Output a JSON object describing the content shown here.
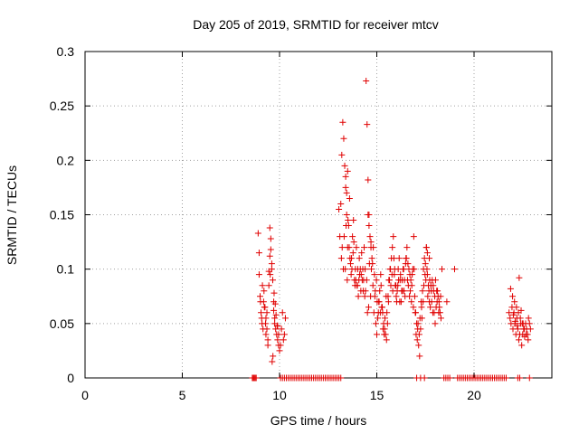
{
  "chart_data": {
    "type": "scatter",
    "title": "Day 205 of 2019, SRMTID for receiver mtcv",
    "xlabel": "GPS time / hours",
    "ylabel": "SRMTID / TECUs",
    "xlim": [
      0,
      24
    ],
    "ylim": [
      0,
      0.3
    ],
    "grid": true,
    "x_ticks": [
      0,
      5,
      10,
      15,
      20
    ],
    "x_tick_labels": [
      "0",
      "5",
      "10",
      "15",
      "20"
    ],
    "y_ticks": [
      0,
      0.05,
      0.1,
      0.15,
      0.2,
      0.25,
      0.3
    ],
    "y_tick_labels": [
      "0",
      "0.05",
      "0.1",
      "0.15",
      "0.2",
      "0.25",
      "0.3"
    ],
    "marker": "+",
    "marker_color": "#e00000",
    "series": [
      {
        "name": "SRMTID",
        "x": [
          8.6,
          8.65,
          8.7,
          8.75,
          8.8,
          10.05,
          10.15,
          10.25,
          10.35,
          10.45,
          10.55,
          10.65,
          10.75,
          10.85,
          10.95,
          11.05,
          11.15,
          11.25,
          11.35,
          11.45,
          11.55,
          11.65,
          11.75,
          11.85,
          11.95,
          12.05,
          12.15,
          12.25,
          12.35,
          12.45,
          12.55,
          12.65,
          12.75,
          12.85,
          12.95,
          13.05,
          13.15,
          17.05,
          17.25,
          17.45,
          18.45,
          18.55,
          18.65,
          18.75,
          19.15,
          19.25,
          19.35,
          19.45,
          19.55,
          19.65,
          19.75,
          19.85,
          19.95,
          20.05,
          20.15,
          20.25,
          20.35,
          20.45,
          20.55,
          20.65,
          20.75,
          20.85,
          20.95,
          21.05,
          21.15,
          21.25,
          21.35,
          21.45,
          21.55,
          21.65,
          22.25,
          22.35,
          22.85,
          8.9,
          8.95,
          9.0,
          9.05,
          9.1,
          9.15,
          8.95,
          9.02,
          9.08,
          9.2,
          9.3,
          9.35,
          9.4,
          9.45,
          9.5,
          9.55,
          9.6,
          9.65,
          9.7,
          9.75,
          9.8,
          9.85,
          9.9,
          9.95,
          10.0,
          9.5,
          9.55,
          9.45,
          9.6,
          9.52,
          9.25,
          9.3,
          9.35,
          9.4,
          9.7,
          9.75,
          9.9,
          9.95,
          10.05,
          10.1,
          10.15,
          10.2,
          10.25,
          10.3,
          9.12,
          9.18,
          9.22,
          9.28,
          9.62,
          9.66,
          9.72,
          9.78,
          9.82,
          9.88,
          13.05,
          13.1,
          13.15,
          13.2,
          13.25,
          13.3,
          13.35,
          13.4,
          13.45,
          13.5,
          13.55,
          13.6,
          13.65,
          13.7,
          13.75,
          13.8,
          13.85,
          13.9,
          13.95,
          14.0,
          14.05,
          14.1,
          14.15,
          14.2,
          14.25,
          14.3,
          14.35,
          14.4,
          14.45,
          14.5,
          14.55,
          14.6,
          14.65,
          14.7,
          14.75,
          14.8,
          14.85,
          14.9,
          14.95,
          15.0,
          15.05,
          15.1,
          15.15,
          15.2,
          15.25,
          15.3,
          15.35,
          15.4,
          15.45,
          15.5,
          15.55,
          15.6,
          15.65,
          15.7,
          15.75,
          15.8,
          15.85,
          15.9,
          15.95,
          16.0,
          16.05,
          16.1,
          16.15,
          16.2,
          16.25,
          16.3,
          16.35,
          16.4,
          16.45,
          16.5,
          16.55,
          16.6,
          16.65,
          16.7,
          16.75,
          16.8,
          16.85,
          16.9,
          16.95,
          17.0,
          17.05,
          17.1,
          17.15,
          17.2,
          17.25,
          17.3,
          17.35,
          17.4,
          17.45,
          17.5,
          17.55,
          17.6,
          17.65,
          17.7,
          17.75,
          17.8,
          17.85,
          17.9,
          17.95,
          18.0,
          18.05,
          18.1,
          18.15,
          18.2,
          18.25,
          18.3,
          13.22,
          13.28,
          13.42,
          13.48,
          13.62,
          13.68,
          13.82,
          13.88,
          14.02,
          14.08,
          14.22,
          14.28,
          14.42,
          14.48,
          14.62,
          14.68,
          14.82,
          14.88,
          15.02,
          15.08,
          15.22,
          15.28,
          15.42,
          15.48,
          15.62,
          15.68,
          15.82,
          15.88,
          16.02,
          16.08,
          16.22,
          16.28,
          16.42,
          16.48,
          16.62,
          16.68,
          16.82,
          16.88,
          17.02,
          17.08,
          17.22,
          17.28,
          17.42,
          17.48,
          17.62,
          17.68,
          17.82,
          17.88,
          18.02,
          18.08,
          18.22,
          18.28,
          13.18,
          13.32,
          13.38,
          13.52,
          13.58,
          13.72,
          13.78,
          13.92,
          13.98,
          14.12,
          14.18,
          14.32,
          14.38,
          14.52,
          14.58,
          14.72,
          14.78,
          14.92,
          14.98,
          15.12,
          15.18,
          15.32,
          15.38,
          15.52,
          15.58,
          15.72,
          15.78,
          15.92,
          15.98,
          16.12,
          16.18,
          16.32,
          16.38,
          16.52,
          16.58,
          16.72,
          16.78,
          16.92,
          16.98,
          17.12,
          17.18,
          17.32,
          17.38,
          17.52,
          17.58,
          17.72,
          17.78,
          17.92,
          17.98,
          18.12,
          18.18,
          13.4,
          13.45,
          13.5,
          14.55,
          14.6,
          14.7,
          17.55,
          17.6,
          17.7,
          18.35,
          18.6,
          19.0,
          21.8,
          21.85,
          21.9,
          21.95,
          22.0,
          22.05,
          22.1,
          22.15,
          22.2,
          22.25,
          22.3,
          22.35,
          22.4,
          22.45,
          22.5,
          22.55,
          22.6,
          22.65,
          22.7,
          22.75,
          22.8,
          22.85,
          22.9,
          21.88,
          21.98,
          22.08,
          22.18,
          22.28,
          22.38,
          22.48,
          22.58,
          22.68,
          22.78,
          22.02,
          22.12,
          22.22,
          22.32,
          22.42,
          22.52
        ],
        "y": [
          0,
          0,
          0,
          0,
          0,
          0,
          0,
          0,
          0,
          0,
          0,
          0,
          0,
          0,
          0,
          0,
          0,
          0,
          0,
          0,
          0,
          0,
          0,
          0,
          0,
          0,
          0,
          0,
          0,
          0,
          0,
          0,
          0,
          0,
          0,
          0,
          0,
          0,
          0,
          0,
          0,
          0,
          0,
          0,
          0,
          0,
          0,
          0,
          0,
          0,
          0,
          0,
          0,
          0,
          0,
          0,
          0,
          0,
          0,
          0,
          0,
          0,
          0,
          0,
          0,
          0,
          0,
          0,
          0,
          0,
          0,
          0,
          0,
          0.133,
          0.095,
          0.075,
          0.06,
          0.05,
          0.045,
          0.115,
          0.07,
          0.055,
          0.08,
          0.04,
          0.06,
          0.03,
          0.085,
          0.138,
          0.128,
          0.105,
          0.09,
          0.07,
          0.05,
          0.045,
          0.04,
          0.035,
          0.03,
          0.025,
          0.112,
          0.118,
          0.098,
          0.1,
          0.095,
          0.065,
          0.055,
          0.045,
          0.035,
          0.062,
          0.055,
          0.048,
          0.04,
          0.03,
          0.045,
          0.06,
          0.035,
          0.04,
          0.055,
          0.085,
          0.07,
          0.065,
          0.05,
          0.015,
          0.02,
          0.078,
          0.068,
          0.058,
          0.048,
          0.155,
          0.13,
          0.16,
          0.205,
          0.235,
          0.22,
          0.195,
          0.175,
          0.15,
          0.12,
          0.14,
          0.165,
          0.105,
          0.11,
          0.13,
          0.145,
          0.09,
          0.1,
          0.12,
          0.085,
          0.075,
          0.11,
          0.1,
          0.095,
          0.09,
          0.08,
          0.12,
          0.1,
          0.273,
          0.233,
          0.182,
          0.15,
          0.13,
          0.12,
          0.11,
          0.085,
          0.06,
          0.075,
          0.05,
          0.04,
          0.055,
          0.07,
          0.08,
          0.095,
          0.065,
          0.06,
          0.05,
          0.045,
          0.04,
          0.035,
          0.05,
          0.07,
          0.09,
          0.1,
          0.11,
          0.12,
          0.13,
          0.095,
          0.085,
          0.075,
          0.08,
          0.1,
          0.11,
          0.09,
          0.07,
          0.09,
          0.1,
          0.08,
          0.075,
          0.11,
          0.12,
          0.105,
          0.1,
          0.095,
          0.09,
          0.085,
          0.1,
          0.13,
          0.075,
          0.06,
          0.05,
          0.045,
          0.03,
          0.02,
          0.045,
          0.065,
          0.08,
          0.1,
          0.11,
          0.105,
          0.12,
          0.095,
          0.085,
          0.07,
          0.065,
          0.08,
          0.09,
          0.085,
          0.06,
          0.05,
          0.065,
          0.07,
          0.075,
          0.07,
          0.06,
          0.055,
          0.12,
          0.1,
          0.14,
          0.09,
          0.11,
          0.095,
          0.125,
          0.085,
          0.1,
          0.09,
          0.115,
          0.1,
          0.08,
          0.09,
          0.105,
          0.075,
          0.12,
          0.095,
          0.07,
          0.06,
          0.085,
          0.065,
          0.055,
          0.075,
          0.09,
          0.1,
          0.08,
          0.11,
          0.07,
          0.085,
          0.095,
          0.08,
          0.09,
          0.105,
          0.085,
          0.075,
          0.095,
          0.065,
          0.04,
          0.035,
          0.055,
          0.07,
          0.085,
          0.095,
          0.075,
          0.08,
          0.07,
          0.06,
          0.09,
          0.08,
          0.065,
          0.075,
          0.11,
          0.13,
          0.1,
          0.145,
          0.12,
          0.1,
          0.115,
          0.09,
          0.085,
          0.095,
          0.08,
          0.09,
          0.075,
          0.06,
          0.065,
          0.1,
          0.105,
          0.08,
          0.09,
          0.07,
          0.06,
          0.045,
          0.04,
          0.06,
          0.075,
          0.085,
          0.095,
          0.1,
          0.085,
          0.09,
          0.07,
          0.08,
          0.1,
          0.11,
          0.09,
          0.08,
          0.07,
          0.1,
          0.06,
          0.05,
          0.04,
          0.055,
          0.07,
          0.09,
          0.1,
          0.09,
          0.085,
          0.08,
          0.075,
          0.08,
          0.06,
          0.185,
          0.17,
          0.19,
          0.15,
          0.14,
          0.125,
          0.12,
          0.115,
          0.11,
          0.1,
          0.07,
          0.1,
          0.06,
          0.055,
          0.05,
          0.065,
          0.045,
          0.06,
          0.05,
          0.04,
          0.055,
          0.045,
          0.035,
          0.04,
          0.05,
          0.03,
          0.04,
          0.045,
          0.038,
          0.05,
          0.045,
          0.04,
          0.055,
          0.05,
          0.045,
          0.082,
          0.075,
          0.07,
          0.065,
          0.06,
          0.055,
          0.05,
          0.045,
          0.04,
          0.035,
          0.058,
          0.052,
          0.048,
          0.092,
          0.062,
          0.05
        ]
      }
    ]
  }
}
